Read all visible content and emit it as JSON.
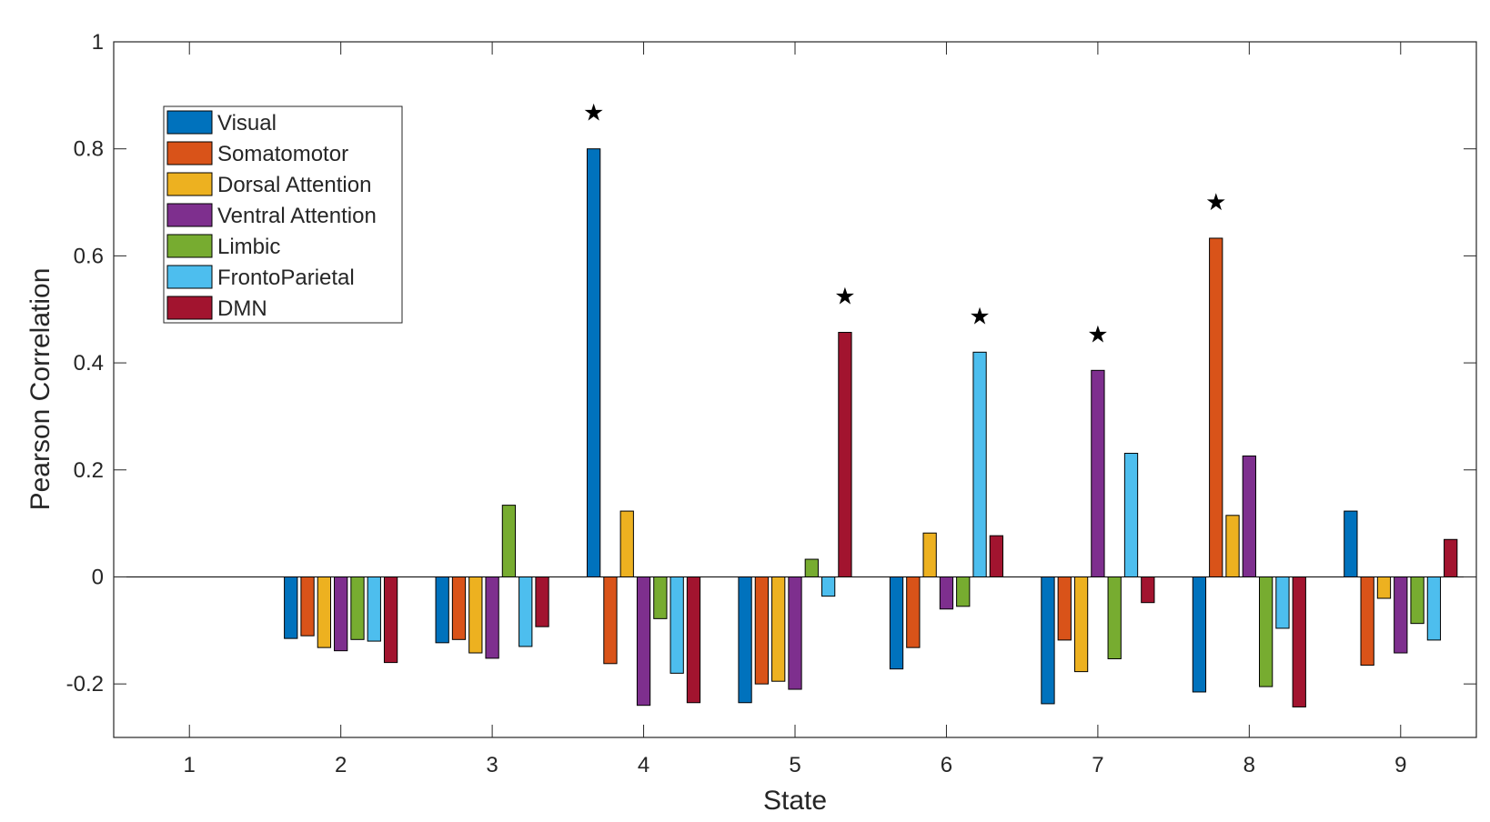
{
  "chart_data": {
    "type": "bar",
    "title": "",
    "xlabel": "State",
    "ylabel": "Pearson Correlation",
    "ylim": [
      -0.3,
      1.0
    ],
    "xlim": [
      0.5,
      9.5
    ],
    "yticks": [
      -0.2,
      0,
      0.2,
      0.4,
      0.6,
      0.8,
      1
    ],
    "ytick_labels": [
      "-0.2",
      "0",
      "0.2",
      "0.4",
      "0.6",
      "0.8",
      "1"
    ],
    "categories": [
      "1",
      "2",
      "3",
      "4",
      "5",
      "6",
      "7",
      "8",
      "9"
    ],
    "grid": false,
    "legend_position": "top-left",
    "series": [
      {
        "name": "Visual",
        "color": "#0072BD",
        "values": [
          0,
          -0.115,
          -0.123,
          0.8,
          -0.235,
          -0.172,
          -0.237,
          -0.215,
          0.123
        ]
      },
      {
        "name": "Somatomotor",
        "color": "#D95319",
        "values": [
          0,
          -0.11,
          -0.117,
          -0.162,
          -0.2,
          -0.132,
          -0.118,
          0.633,
          -0.165
        ]
      },
      {
        "name": "Dorsal Attention",
        "color": "#EDB120",
        "values": [
          0,
          -0.132,
          -0.142,
          0.123,
          -0.195,
          0.082,
          -0.177,
          0.115,
          -0.04
        ]
      },
      {
        "name": "Ventral Attention",
        "color": "#7E2F8E",
        "values": [
          0,
          -0.138,
          -0.152,
          -0.24,
          -0.21,
          -0.06,
          0.386,
          0.226,
          -0.142
        ]
      },
      {
        "name": "Limbic",
        "color": "#77AC30",
        "values": [
          0,
          -0.117,
          0.134,
          -0.078,
          0.033,
          -0.055,
          -0.153,
          -0.205,
          -0.087
        ]
      },
      {
        "name": "FrontoParietal",
        "color": "#4DBEEE",
        "values": [
          0,
          -0.12,
          -0.13,
          -0.18,
          -0.036,
          0.42,
          0.231,
          -0.096,
          -0.118
        ]
      },
      {
        "name": "DMN",
        "color": "#A2142F",
        "values": [
          0,
          -0.16,
          -0.093,
          -0.235,
          0.457,
          0.077,
          -0.048,
          -0.243,
          0.07
        ]
      }
    ],
    "significance_markers": [
      {
        "state": 4,
        "series": "Visual",
        "label": "★"
      },
      {
        "state": 5,
        "series": "DMN",
        "label": "★"
      },
      {
        "state": 6,
        "series": "FrontoParietal",
        "label": "★"
      },
      {
        "state": 7,
        "series": "Ventral Attention",
        "label": "★"
      },
      {
        "state": 8,
        "series": "Somatomotor",
        "label": "★"
      }
    ]
  }
}
